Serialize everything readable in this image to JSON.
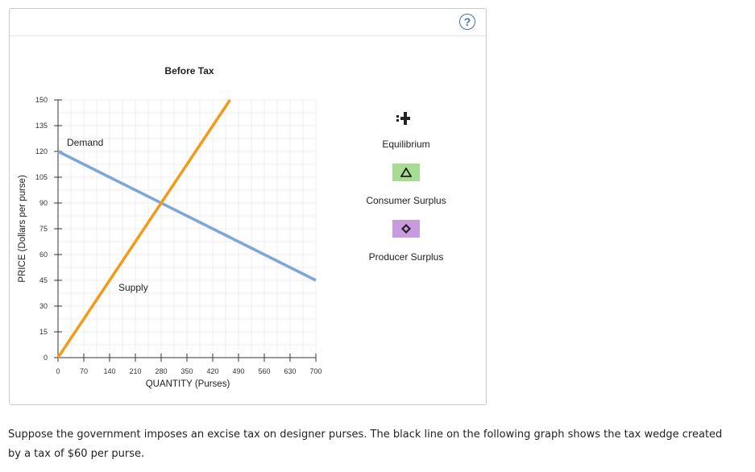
{
  "panel": {
    "help_label": "?"
  },
  "chart_data": {
    "type": "line",
    "title": "Before Tax",
    "xlabel": "QUANTITY (Purses)",
    "ylabel": "PRICE (Dollars per purse)",
    "xlim": [
      0,
      700
    ],
    "ylim": [
      0,
      150
    ],
    "x_ticks": [
      0,
      70,
      140,
      210,
      280,
      350,
      420,
      490,
      560,
      630,
      700
    ],
    "y_ticks": [
      0,
      15,
      30,
      45,
      60,
      75,
      90,
      105,
      120,
      135,
      150
    ],
    "grid": true,
    "series": [
      {
        "name": "Demand",
        "color": "#7ea6d6",
        "x": [
          0,
          700
        ],
        "y": [
          120,
          45
        ]
      },
      {
        "name": "Supply",
        "color": "#f39a1b",
        "x": [
          0,
          467
        ],
        "y": [
          0,
          150
        ]
      }
    ]
  },
  "legend": {
    "equilibrium": "Equilibrium",
    "consumer_surplus": "Consumer Surplus",
    "producer_surplus": "Producer Surplus",
    "consumer_color": "#a9dc93",
    "producer_color": "#c89be0"
  },
  "question": "Suppose the government imposes an excise tax on designer purses. The black line on the following graph shows the tax wedge created by a tax of $60 per purse."
}
